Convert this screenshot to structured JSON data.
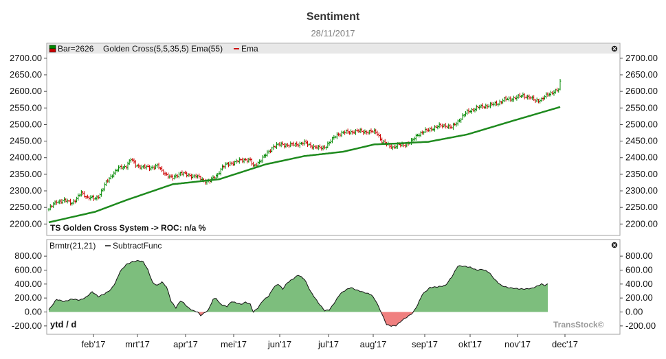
{
  "title": "Sentiment",
  "date": "28/11/2017",
  "watermark": "TransStock©",
  "colors": {
    "up": "#008800",
    "down": "#cc0000",
    "ema": "#1e8a1e",
    "area_pos": "#7dbe7d",
    "area_neg": "#f08080",
    "frame": "#a0a0a0"
  },
  "x_axis": {
    "labels": [
      "feb'17",
      "mrt'17",
      "apr'17",
      "mei'17",
      "jun'17",
      "jul'17",
      "aug'17",
      "sep'17",
      "okt'17",
      "nov'17",
      "dec'17"
    ]
  },
  "chart_data": [
    {
      "type": "ohlc",
      "legend": {
        "icon": "bar-color-swatch-icon",
        "bar_label": "Bar=2626",
        "indicator_label": "Golden Cross(5,5,35,5) Ema(55)",
        "ema_icon": "red-line-icon",
        "ema_label": "Ema"
      },
      "annotation": "TS Golden Cross System -> ROC: n/a %",
      "ylim": [
        2180,
        2710
      ],
      "y_ticks": [
        2200,
        2250,
        2300,
        2350,
        2400,
        2450,
        2500,
        2550,
        2600,
        2650,
        2700
      ],
      "y_tick_labels": [
        "2200.00",
        "2250.00",
        "2300.00",
        "2350.00",
        "2400.00",
        "2450.00",
        "2500.00",
        "2550.00",
        "2600.00",
        "2650.00",
        "2700.00"
      ],
      "price_keypoints": [
        [
          0,
          2245
        ],
        [
          5,
          2268
        ],
        [
          10,
          2270
        ],
        [
          15,
          2265
        ],
        [
          18,
          2275
        ],
        [
          21,
          2295
        ],
        [
          25,
          2280
        ],
        [
          30,
          2276
        ],
        [
          33,
          2290
        ],
        [
          37,
          2325
        ],
        [
          41,
          2350
        ],
        [
          45,
          2368
        ],
        [
          50,
          2375
        ],
        [
          53,
          2395
        ],
        [
          56,
          2378
        ],
        [
          60,
          2372
        ],
        [
          65,
          2370
        ],
        [
          70,
          2375
        ],
        [
          73,
          2360
        ],
        [
          78,
          2342
        ],
        [
          80,
          2338
        ],
        [
          85,
          2355
        ],
        [
          90,
          2346
        ],
        [
          95,
          2345
        ],
        [
          100,
          2330
        ],
        [
          104,
          2330
        ],
        [
          108,
          2345
        ],
        [
          112,
          2372
        ],
        [
          117,
          2383
        ],
        [
          121,
          2388
        ],
        [
          127,
          2395
        ],
        [
          130,
          2392
        ],
        [
          132,
          2372
        ],
        [
          136,
          2390
        ],
        [
          140,
          2408
        ],
        [
          145,
          2435
        ],
        [
          150,
          2440
        ],
        [
          155,
          2438
        ],
        [
          160,
          2440
        ],
        [
          165,
          2445
        ],
        [
          168,
          2438
        ],
        [
          172,
          2432
        ],
        [
          175,
          2428
        ],
        [
          178,
          2432
        ],
        [
          182,
          2450
        ],
        [
          186,
          2470
        ],
        [
          190,
          2475
        ],
        [
          195,
          2478
        ],
        [
          200,
          2480
        ],
        [
          205,
          2478
        ],
        [
          210,
          2478
        ],
        [
          212,
          2475
        ],
        [
          215,
          2448
        ],
        [
          218,
          2440
        ],
        [
          222,
          2432
        ],
        [
          226,
          2438
        ],
        [
          230,
          2440
        ],
        [
          234,
          2448
        ],
        [
          238,
          2470
        ],
        [
          242,
          2478
        ],
        [
          247,
          2488
        ],
        [
          252,
          2495
        ],
        [
          256,
          2498
        ],
        [
          260,
          2490
        ],
        [
          265,
          2515
        ],
        [
          270,
          2538
        ],
        [
          275,
          2548
        ],
        [
          280,
          2555
        ],
        [
          285,
          2558
        ],
        [
          290,
          2565
        ],
        [
          294,
          2575
        ],
        [
          298,
          2577
        ],
        [
          302,
          2582
        ],
        [
          306,
          2588
        ],
        [
          310,
          2582
        ],
        [
          314,
          2572
        ],
        [
          318,
          2576
        ],
        [
          322,
          2590
        ],
        [
          326,
          2600
        ],
        [
          329,
          2605
        ],
        [
          330,
          2626
        ]
      ],
      "ema_keypoints": [
        [
          0,
          2205
        ],
        [
          30,
          2237
        ],
        [
          50,
          2272
        ],
        [
          80,
          2320
        ],
        [
          110,
          2335
        ],
        [
          140,
          2380
        ],
        [
          165,
          2405
        ],
        [
          190,
          2418
        ],
        [
          210,
          2440
        ],
        [
          225,
          2443
        ],
        [
          245,
          2448
        ],
        [
          270,
          2470
        ],
        [
          300,
          2512
        ],
        [
          330,
          2553
        ]
      ]
    },
    {
      "type": "area",
      "legend": {
        "indicator_label": "Brmtr(21,21)",
        "func_icon": "black-line-icon",
        "func_label": "SubtractFunc"
      },
      "annotation": "ytd / d",
      "ylim": [
        -300,
        880
      ],
      "y_ticks": [
        -200,
        0,
        200,
        400,
        600,
        800
      ],
      "y_tick_labels": [
        "-200.00",
        "0.00",
        "200.00",
        "400.00",
        "600.00",
        "800.00"
      ],
      "value_keypoints": [
        [
          0,
          30
        ],
        [
          5,
          180
        ],
        [
          10,
          150
        ],
        [
          15,
          185
        ],
        [
          20,
          170
        ],
        [
          24,
          210
        ],
        [
          28,
          290
        ],
        [
          32,
          220
        ],
        [
          36,
          260
        ],
        [
          40,
          320
        ],
        [
          43,
          420
        ],
        [
          46,
          580
        ],
        [
          50,
          680
        ],
        [
          54,
          720
        ],
        [
          58,
          735
        ],
        [
          61,
          720
        ],
        [
          64,
          600
        ],
        [
          67,
          420
        ],
        [
          70,
          380
        ],
        [
          73,
          430
        ],
        [
          76,
          360
        ],
        [
          79,
          150
        ],
        [
          82,
          60
        ],
        [
          85,
          160
        ],
        [
          87,
          130
        ],
        [
          90,
          60
        ],
        [
          93,
          20
        ],
        [
          96,
          0
        ],
        [
          98,
          -50
        ],
        [
          100,
          -20
        ],
        [
          103,
          30
        ],
        [
          106,
          180
        ],
        [
          108,
          200
        ],
        [
          110,
          130
        ],
        [
          112,
          100
        ],
        [
          115,
          80
        ],
        [
          118,
          150
        ],
        [
          121,
          130
        ],
        [
          124,
          110
        ],
        [
          127,
          140
        ],
        [
          130,
          110
        ],
        [
          132,
          0
        ],
        [
          135,
          60
        ],
        [
          138,
          160
        ],
        [
          142,
          230
        ],
        [
          145,
          350
        ],
        [
          148,
          400
        ],
        [
          151,
          330
        ],
        [
          154,
          420
        ],
        [
          158,
          480
        ],
        [
          161,
          530
        ],
        [
          165,
          470
        ],
        [
          169,
          290
        ],
        [
          174,
          130
        ],
        [
          178,
          20
        ],
        [
          181,
          30
        ],
        [
          184,
          120
        ],
        [
          188,
          260
        ],
        [
          192,
          320
        ],
        [
          195,
          350
        ],
        [
          198,
          320
        ],
        [
          202,
          290
        ],
        [
          205,
          270
        ],
        [
          208,
          250
        ],
        [
          211,
          160
        ],
        [
          214,
          20
        ],
        [
          216,
          -80
        ],
        [
          218,
          -180
        ],
        [
          221,
          -200
        ],
        [
          224,
          -195
        ],
        [
          228,
          -120
        ],
        [
          232,
          -60
        ],
        [
          235,
          -10
        ],
        [
          238,
          100
        ],
        [
          241,
          250
        ],
        [
          246,
          350
        ],
        [
          251,
          360
        ],
        [
          256,
          380
        ],
        [
          260,
          500
        ],
        [
          264,
          660
        ],
        [
          268,
          655
        ],
        [
          272,
          640
        ],
        [
          276,
          600
        ],
        [
          280,
          610
        ],
        [
          284,
          570
        ],
        [
          288,
          460
        ],
        [
          292,
          380
        ],
        [
          296,
          350
        ],
        [
          300,
          340
        ],
        [
          304,
          330
        ],
        [
          308,
          330
        ],
        [
          312,
          340
        ],
        [
          316,
          380
        ],
        [
          318,
          400
        ],
        [
          320,
          380
        ],
        [
          322,
          400
        ]
      ]
    }
  ]
}
